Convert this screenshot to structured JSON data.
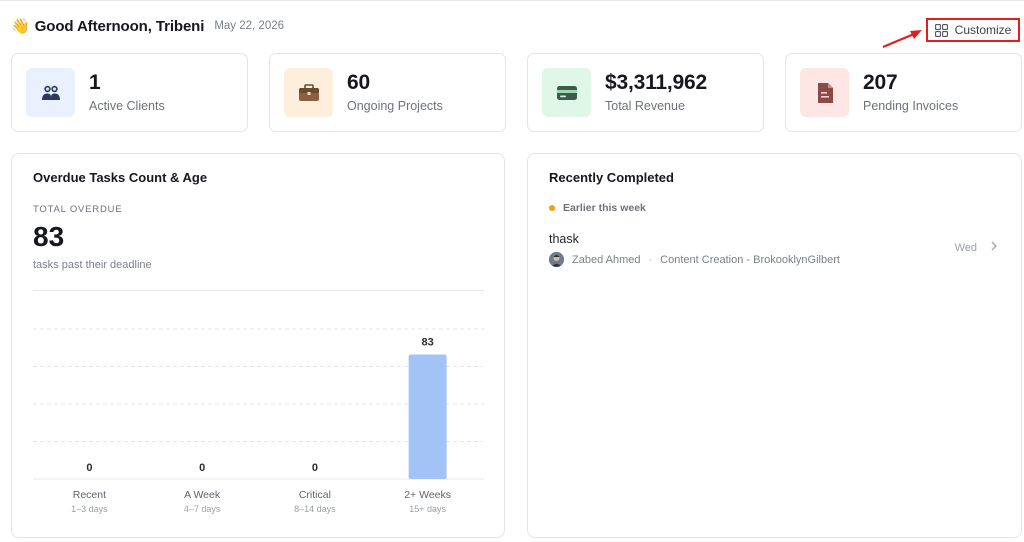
{
  "header": {
    "wave": "👋",
    "greeting": "Good Afternoon, Tribeni",
    "date": "May 22, 2026",
    "customize_label": "Customize"
  },
  "stats": [
    {
      "value": "1",
      "label": "Active Clients",
      "icon": "users-icon",
      "bg": "#e8f1fd",
      "color": "#2f3a5a"
    },
    {
      "value": "60",
      "label": "Ongoing Projects",
      "icon": "briefcase-icon",
      "bg": "#fdefdc",
      "color": "#6b4a2e"
    },
    {
      "value": "$3,311,962",
      "label": "Total Revenue",
      "icon": "credit-card-icon",
      "bg": "#def7e6",
      "color": "#3f5a4a"
    },
    {
      "value": "207",
      "label": "Pending Invoices",
      "icon": "document-icon",
      "bg": "#fde6e4",
      "color": "#8a4a45"
    }
  ],
  "overdue": {
    "title": "Overdue Tasks Count & Age",
    "total_label": "TOTAL OVERDUE",
    "total_value": "83",
    "total_sub": "tasks past their deadline"
  },
  "chart_data": {
    "type": "bar",
    "categories": [
      "Recent",
      "A Week",
      "Critical",
      "2+ Weeks"
    ],
    "subcategories": [
      "1–3 days",
      "4–7 days",
      "8–14 days",
      "15+ days"
    ],
    "values": [
      0,
      0,
      0,
      83
    ],
    "bar_color": "#a3c3f7",
    "ylim": [
      0,
      100
    ],
    "grid": true
  },
  "recent": {
    "title": "Recently Completed",
    "group_label": "Earlier this week",
    "items": [
      {
        "title": "thask",
        "assignee": "Zabed Ahmed",
        "project": "Content Creation - BrokooklynGilbert",
        "day": "Wed"
      }
    ]
  }
}
